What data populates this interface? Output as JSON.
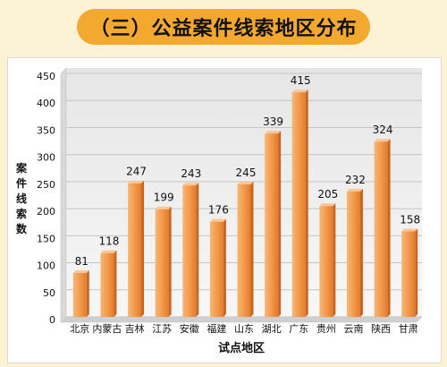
{
  "title": "（三）公益案件线索地区分布",
  "chart_data": {
    "type": "bar",
    "categories": [
      "北京",
      "内蒙古",
      "吉林",
      "江苏",
      "安徽",
      "福建",
      "山东",
      "湖北",
      "广东",
      "贵州",
      "云南",
      "陕西",
      "甘肃"
    ],
    "values": [
      81,
      118,
      247,
      199,
      243,
      176,
      245,
      339,
      415,
      205,
      232,
      324,
      158
    ],
    "ylabel": "案件线索数",
    "xlabel": "试点地区",
    "ylim": [
      0,
      450
    ],
    "yticks": [
      0,
      50,
      100,
      150,
      200,
      250,
      300,
      350,
      400,
      450
    ],
    "grid": true,
    "bar_color": "#F39A4D"
  }
}
